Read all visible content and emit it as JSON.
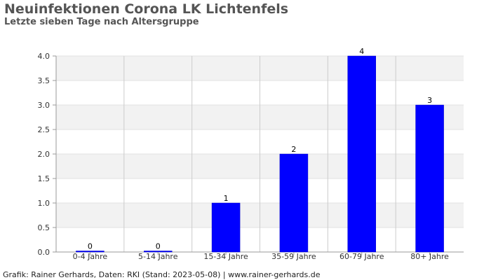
{
  "header": {
    "title": "Neuinfektionen Corona LK Lichtenfels",
    "subtitle": "Letzte sieben Tage nach Altersgruppe"
  },
  "footer": {
    "credit": "Grafik: Rainer Gerhards, Daten: RKI (Stand: 2023-05-08) | www.rainer-gerhards.de"
  },
  "colors": {
    "bar": "#0000ff",
    "band": "#f2f2f2",
    "grid": "#cccccc",
    "axis": "#999999",
    "text": "#333333"
  },
  "chart_data": {
    "type": "bar",
    "title": "Neuinfektionen Corona LK Lichtenfels",
    "subtitle": "Letzte sieben Tage nach Altersgruppe",
    "categories": [
      "0-4 Jahre",
      "5-14 Jahre",
      "15-34 Jahre",
      "35-59 Jahre",
      "60-79 Jahre",
      "80+ Jahre"
    ],
    "values": [
      0,
      0,
      1,
      2,
      4,
      3
    ],
    "ylim": [
      0,
      4
    ],
    "yticks": [
      0.0,
      0.5,
      1.0,
      1.5,
      2.0,
      2.5,
      3.0,
      3.5,
      4.0
    ],
    "ytick_labels": [
      "0.0",
      "0.5",
      "1.0",
      "1.5",
      "2.0",
      "2.5",
      "3.0",
      "3.5",
      "4.0"
    ],
    "grid": true,
    "data_labels": true
  }
}
